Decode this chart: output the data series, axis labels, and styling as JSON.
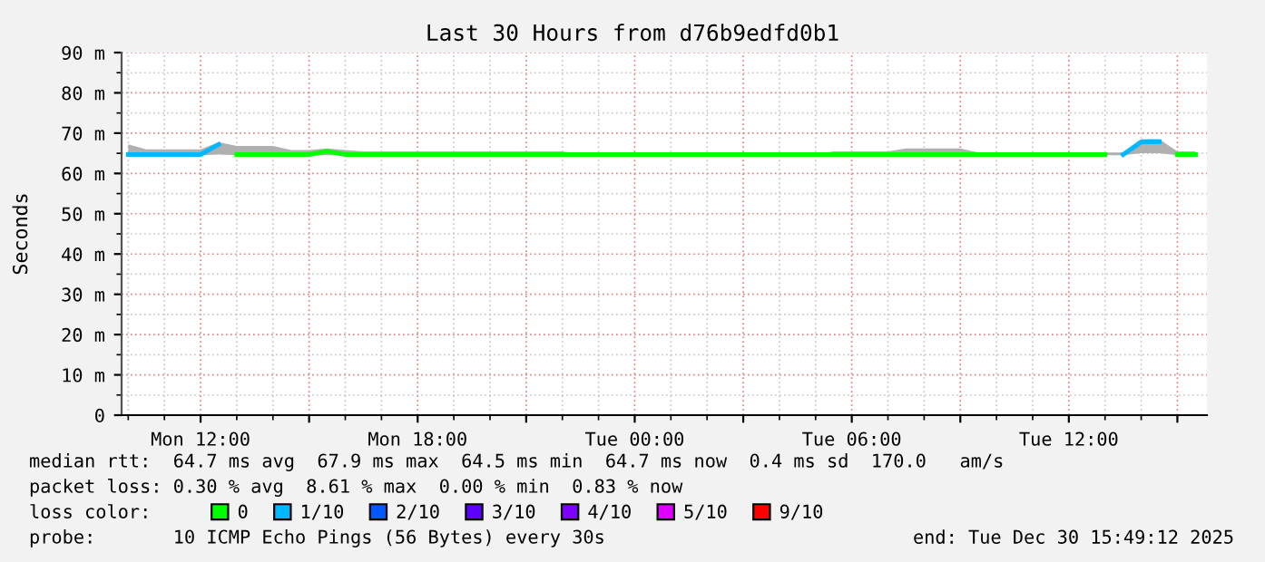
{
  "chart_data": {
    "type": "line",
    "title": "Last 30 Hours from d76b9edfd0b1",
    "ylabel": "Seconds",
    "x": [
      "2025-12-29T10:00",
      "2025-12-29T10:30",
      "2025-12-29T11:00",
      "2025-12-29T11:30",
      "2025-12-29T12:00",
      "2025-12-29T12:30",
      "2025-12-29T13:00",
      "2025-12-29T13:30",
      "2025-12-29T14:00",
      "2025-12-29T14:30",
      "2025-12-29T15:00",
      "2025-12-29T15:30",
      "2025-12-29T16:00",
      "2025-12-29T16:30",
      "2025-12-29T17:00",
      "2025-12-29T17:30",
      "2025-12-29T18:00",
      "2025-12-29T18:30",
      "2025-12-29T19:00",
      "2025-12-29T19:30",
      "2025-12-29T20:00",
      "2025-12-29T20:30",
      "2025-12-29T21:00",
      "2025-12-29T21:30",
      "2025-12-29T22:00",
      "2025-12-29T22:30",
      "2025-12-29T23:00",
      "2025-12-29T23:30",
      "2025-12-30T00:00",
      "2025-12-30T00:30",
      "2025-12-30T01:00",
      "2025-12-30T01:30",
      "2025-12-30T02:00",
      "2025-12-30T02:30",
      "2025-12-30T03:00",
      "2025-12-30T03:30",
      "2025-12-30T04:00",
      "2025-12-30T04:30",
      "2025-12-30T05:00",
      "2025-12-30T05:30",
      "2025-12-30T06:00",
      "2025-12-30T06:30",
      "2025-12-30T07:00",
      "2025-12-30T07:30",
      "2025-12-30T08:00",
      "2025-12-30T08:30",
      "2025-12-30T09:00",
      "2025-12-30T09:30",
      "2025-12-30T10:00",
      "2025-12-30T10:30",
      "2025-12-30T11:00",
      "2025-12-30T11:30",
      "2025-12-30T12:00",
      "2025-12-30T12:30",
      "2025-12-30T13:00",
      "2025-12-30T13:30",
      "2025-12-30T14:00",
      "2025-12-30T14:30",
      "2025-12-30T15:00",
      "2025-12-30T15:30"
    ],
    "series": [
      {
        "name": "0",
        "color": "#00ff00",
        "values": [
          null,
          null,
          null,
          null,
          null,
          null,
          64.7,
          64.7,
          64.7,
          64.7,
          64.7,
          65.5,
          64.7,
          64.7,
          64.7,
          64.7,
          64.7,
          64.7,
          64.7,
          64.7,
          64.7,
          64.7,
          64.7,
          64.7,
          64.7,
          64.7,
          64.7,
          64.7,
          64.7,
          64.7,
          64.7,
          64.7,
          64.7,
          64.7,
          64.7,
          64.7,
          64.7,
          64.7,
          64.7,
          64.7,
          64.7,
          64.7,
          64.7,
          64.7,
          64.7,
          64.7,
          64.7,
          64.7,
          64.7,
          64.7,
          64.7,
          64.7,
          64.7,
          64.7,
          64.7,
          null,
          null,
          null,
          64.7,
          64.7
        ],
        "lower": [
          64.5,
          64.5,
          64.5,
          64.5,
          64.5,
          64.7,
          64.5,
          64.5,
          64.5,
          64.5,
          64.5,
          64.5,
          64.5,
          64.5,
          64.5,
          64.5,
          64.5,
          64.5,
          64.5,
          64.5,
          64.5,
          64.5,
          64.5,
          64.5,
          64.5,
          64.5,
          64.5,
          64.5,
          64.5,
          64.5,
          64.5,
          64.5,
          64.5,
          64.5,
          64.5,
          64.5,
          64.5,
          64.5,
          64.5,
          64.5,
          64.5,
          64.5,
          64.5,
          64.5,
          64.5,
          64.5,
          64.5,
          64.5,
          64.5,
          64.5,
          64.5,
          64.5,
          64.5,
          64.5,
          64.5,
          64.5,
          65.0,
          65.0,
          64.5,
          64.5
        ],
        "upper": [
          67.2,
          66.0,
          66.0,
          66.0,
          66.0,
          67.8,
          66.8,
          66.8,
          66.8,
          65.8,
          65.8,
          66.2,
          65.8,
          65.5,
          65.5,
          65.5,
          65.5,
          65.5,
          65.5,
          65.5,
          65.5,
          65.5,
          65.5,
          65.5,
          65.5,
          64.8,
          64.8,
          64.8,
          64.8,
          64.8,
          64.8,
          64.8,
          64.8,
          64.8,
          64.8,
          64.8,
          64.8,
          64.8,
          64.8,
          65.5,
          65.5,
          65.5,
          65.5,
          66.2,
          66.2,
          66.2,
          66.2,
          65.2,
          65.2,
          65.2,
          65.2,
          65.2,
          65.2,
          65.2,
          65.2,
          65.2,
          68.5,
          68.5,
          65.5,
          65.5
        ]
      },
      {
        "name": "1/10",
        "color": "#00b8ff",
        "values": [
          64.7,
          64.7,
          64.7,
          64.7,
          64.7,
          67.2,
          null,
          null,
          null,
          null,
          null,
          null,
          null,
          null,
          null,
          null,
          null,
          null,
          null,
          null,
          null,
          null,
          null,
          null,
          null,
          null,
          null,
          null,
          null,
          null,
          null,
          null,
          null,
          null,
          null,
          null,
          null,
          null,
          null,
          null,
          null,
          null,
          null,
          null,
          null,
          null,
          null,
          null,
          null,
          null,
          null,
          null,
          null,
          null,
          null,
          64.7,
          67.8,
          67.9,
          null,
          null
        ]
      },
      {
        "name": "2/10",
        "color": "#0059ff",
        "values": [
          null,
          null,
          null,
          null,
          null,
          null,
          null,
          null,
          null,
          null,
          null,
          null,
          null,
          null,
          null,
          null,
          null,
          null,
          null,
          null,
          null,
          null,
          null,
          null,
          null,
          null,
          null,
          null,
          null,
          null,
          null,
          null,
          null,
          null,
          null,
          null,
          null,
          null,
          null,
          null,
          null,
          null,
          null,
          null,
          null,
          null,
          null,
          null,
          null,
          null,
          null,
          null,
          null,
          null,
          null,
          null,
          null,
          null,
          null,
          null
        ]
      },
      {
        "name": "3/10",
        "color": "#5e00ff",
        "values": [
          null,
          null,
          null,
          null,
          null,
          null,
          null,
          null,
          null,
          null,
          null,
          null,
          null,
          null,
          null,
          null,
          null,
          null,
          null,
          null,
          null,
          null,
          null,
          null,
          null,
          null,
          null,
          null,
          null,
          null,
          null,
          null,
          null,
          null,
          null,
          null,
          null,
          null,
          null,
          null,
          null,
          null,
          null,
          null,
          null,
          null,
          null,
          null,
          null,
          null,
          null,
          null,
          null,
          null,
          null,
          null,
          null,
          null,
          null,
          null
        ]
      },
      {
        "name": "4/10",
        "color": "#7e00ff",
        "values": [
          null,
          null,
          null,
          null,
          null,
          null,
          null,
          null,
          null,
          null,
          null,
          null,
          null,
          null,
          null,
          null,
          null,
          null,
          null,
          null,
          null,
          null,
          null,
          null,
          null,
          null,
          null,
          null,
          null,
          null,
          null,
          null,
          null,
          null,
          null,
          null,
          null,
          null,
          null,
          null,
          null,
          null,
          null,
          null,
          null,
          null,
          null,
          null,
          null,
          null,
          null,
          null,
          null,
          null,
          null,
          null,
          null,
          null,
          null,
          null
        ]
      },
      {
        "name": "5/10",
        "color": "#dd00ff",
        "values": [
          null,
          null,
          null,
          null,
          null,
          null,
          null,
          null,
          null,
          null,
          null,
          null,
          null,
          null,
          null,
          null,
          null,
          null,
          null,
          null,
          null,
          null,
          null,
          null,
          null,
          null,
          null,
          null,
          null,
          null,
          null,
          null,
          null,
          null,
          null,
          null,
          null,
          null,
          null,
          null,
          null,
          null,
          null,
          null,
          null,
          null,
          null,
          null,
          null,
          null,
          null,
          null,
          null,
          null,
          null,
          null,
          null,
          null,
          null,
          null
        ]
      },
      {
        "name": "9/10",
        "color": "#ff0000",
        "values": [
          null,
          null,
          null,
          null,
          null,
          null,
          null,
          null,
          null,
          null,
          null,
          null,
          null,
          null,
          null,
          null,
          null,
          null,
          null,
          null,
          null,
          null,
          null,
          null,
          null,
          null,
          null,
          null,
          null,
          null,
          null,
          null,
          null,
          null,
          null,
          null,
          null,
          null,
          null,
          null,
          null,
          null,
          null,
          null,
          null,
          null,
          null,
          null,
          null,
          null,
          null,
          null,
          null,
          null,
          null,
          null,
          null,
          null,
          null,
          null
        ]
      }
    ],
    "xlim": [
      "2025-12-29T09:49",
      "2025-12-30T15:49"
    ],
    "xticks": [
      {
        "value": "2025-12-29T12:00",
        "label": "Mon 12:00"
      },
      {
        "value": "2025-12-29T15:00",
        "label": null
      },
      {
        "value": "2025-12-29T18:00",
        "label": "Mon 18:00"
      },
      {
        "value": "2025-12-29T21:00",
        "label": null
      },
      {
        "value": "2025-12-30T00:00",
        "label": "Tue 00:00"
      },
      {
        "value": "2025-12-30T03:00",
        "label": null
      },
      {
        "value": "2025-12-30T06:00",
        "label": "Tue 06:00"
      },
      {
        "value": "2025-12-30T09:00",
        "label": null
      },
      {
        "value": "2025-12-30T12:00",
        "label": "Tue 12:00"
      },
      {
        "value": "2025-12-30T15:00",
        "label": null
      }
    ],
    "ylim": [
      0,
      90
    ],
    "yticks": [
      0,
      {
        "value": 10,
        "label": "10 m"
      },
      {
        "value": 20,
        "label": "20 m"
      },
      {
        "value": 30,
        "label": "30 m"
      },
      {
        "value": 40,
        "label": "40 m"
      },
      {
        "value": 50,
        "label": "50 m"
      },
      {
        "value": 60,
        "label": "60 m"
      },
      {
        "value": 70,
        "label": "70 m"
      },
      {
        "value": 80,
        "label": "80 m"
      },
      {
        "value": 90,
        "label": "90 m"
      }
    ],
    "grid": true,
    "legend": "bottom",
    "legend_title": "loss color:",
    "marker": "none",
    "line_style": "solid",
    "annotations": [
      "median rtt:  64.7 ms avg  67.9 ms max  64.5 ms min  64.7 ms now  0.4 ms sd  170.0   am/s",
      "packet loss: 0.30 % avg  8.61 % max  0.00 % min  0.83 % now",
      "probe:       10 ICMP Echo Pings (56 Bytes) every 30s",
      "end: Tue Dec 30 15:49:12 2025"
    ]
  }
}
